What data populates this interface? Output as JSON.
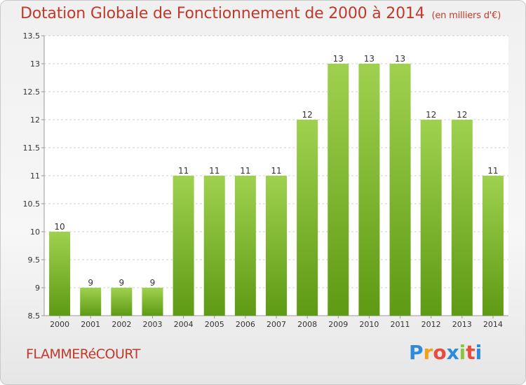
{
  "title": "Dotation Globale de Fonctionnement de 2000 à 2014",
  "subtitle": "(en milliers d'€)",
  "commune": "FLAMMERéCOURT",
  "logo": {
    "letters": [
      "P",
      "r",
      "o",
      "x",
      "i",
      "t",
      "i"
    ],
    "colors": [
      "#2e8bd8",
      "#f0a01a",
      "#e84c3d",
      "#2e8bd8",
      "#8cc63f",
      "#e84c3d",
      "#2e8bd8"
    ]
  },
  "chart_data": {
    "type": "bar",
    "title": "Dotation Globale de Fonctionnement de 2000 à 2014",
    "subtitle": "(en milliers d'€)",
    "categories": [
      "2000",
      "2001",
      "2002",
      "2003",
      "2004",
      "2005",
      "2006",
      "2007",
      "2008",
      "2009",
      "2010",
      "2011",
      "2012",
      "2013",
      "2014"
    ],
    "values": [
      10,
      9,
      9,
      9,
      11,
      11,
      11,
      11,
      12,
      13,
      13,
      13,
      12,
      12,
      11
    ],
    "value_labels": [
      "10",
      "9",
      "9",
      "9",
      "11",
      "11",
      "11",
      "11",
      "12",
      "13",
      "13",
      "13",
      "12",
      "12",
      "11"
    ],
    "yticks": [
      "8.5",
      "9",
      "9.5",
      "10",
      "10.5",
      "11",
      "11.5",
      "12",
      "12.5",
      "13",
      "13.5"
    ],
    "ylim": [
      8.5,
      13.5
    ],
    "xlabel": "",
    "ylabel": "",
    "grid": true,
    "colors": {
      "bar_top": "#9fd14f",
      "bar_bottom": "#5e9a14",
      "grid": "#cfcfcf",
      "axis": "#999999",
      "text": "#333333"
    }
  }
}
